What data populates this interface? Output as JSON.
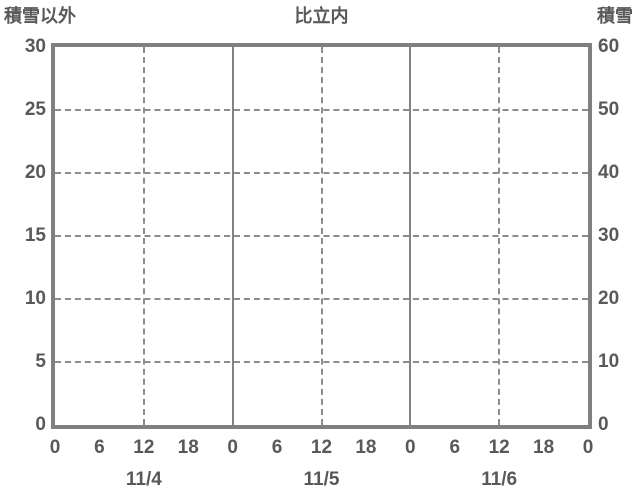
{
  "header": {
    "left_axis_title": "積雪以外",
    "title": "比立内",
    "right_axis_title": "積雪"
  },
  "colors": {
    "background": "#ffffff",
    "frame": "#808080",
    "grid_dashed": "#8c8c8c",
    "grid_solid": "#828282",
    "text": "#595959"
  },
  "chart_data": {
    "type": "line",
    "title": "比立内",
    "subtitle": "",
    "left_axis": {
      "label": "積雪以外",
      "min": 0,
      "max": 30,
      "tick_step": 5,
      "ticks": [
        30,
        25,
        20,
        15,
        10,
        5,
        0
      ]
    },
    "right_axis": {
      "label": "積雪",
      "min": 0,
      "max": 60,
      "tick_step": 10,
      "ticks": [
        60,
        50,
        40,
        30,
        20,
        10,
        0
      ]
    },
    "x_axis": {
      "unit": "hour",
      "range_hours": [
        0,
        72
      ],
      "hour_tick_interval": 6,
      "hour_tick_labels": [
        "0",
        "6",
        "12",
        "18",
        "0",
        "6",
        "12",
        "18",
        "0",
        "6",
        "12",
        "18",
        "0"
      ],
      "date_labels": [
        {
          "label": "11/4",
          "center_hour": 12
        },
        {
          "label": "11/5",
          "center_hour": 36
        },
        {
          "label": "11/6",
          "center_hour": 60
        }
      ],
      "solid_gridline_hours": [
        24,
        48
      ],
      "dashed_gridline_hours": [
        12,
        36,
        60
      ]
    },
    "horizontal_gridline_left_values": [
      25,
      20,
      15,
      10,
      5
    ],
    "grid": true,
    "legend": false,
    "series": []
  }
}
